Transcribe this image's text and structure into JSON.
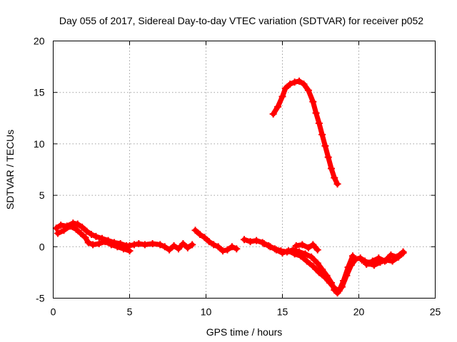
{
  "chart_data": {
    "type": "scatter",
    "title": "Day 055 of 2017, Sidereal Day-to-day VTEC variation (SDTVAR) for receiver p052",
    "xlabel": "GPS time / hours",
    "ylabel": "SDTVAR / TECUs",
    "xlim": [
      0,
      25
    ],
    "ylim": [
      -5,
      20
    ],
    "xticks": [
      0,
      5,
      10,
      15,
      20,
      25
    ],
    "yticks": [
      -5,
      0,
      5,
      10,
      15,
      20
    ],
    "xtick_labels": [
      "0",
      "5",
      "10",
      "15",
      "20",
      "25"
    ],
    "ytick_labels": [
      "-5",
      "0",
      "5",
      "10",
      "15",
      "20"
    ],
    "grid": true,
    "legend": "none",
    "marker": "plus",
    "color": "#ff0000",
    "series": [
      {
        "name": "track-1",
        "x": [
          0.2,
          0.5,
          0.9,
          1.3,
          1.6,
          1.9,
          2.2,
          2.5,
          2.8,
          3.2,
          3.6,
          4.0,
          4.4,
          4.8,
          5.0,
          5.3,
          5.6,
          6.0,
          6.5,
          7.0,
          7.3,
          7.6,
          7.9,
          8.2,
          8.5,
          8.8,
          9.1
        ],
        "y": [
          1.8,
          2.1,
          2.0,
          2.3,
          2.2,
          1.9,
          1.5,
          1.2,
          1.0,
          0.8,
          0.6,
          0.4,
          0.3,
          0.1,
          0.1,
          0.2,
          0.3,
          0.2,
          0.3,
          0.2,
          0.0,
          -0.3,
          0.1,
          -0.2,
          0.3,
          -0.1,
          0.2
        ]
      },
      {
        "name": "track-2",
        "x": [
          0.3,
          0.7,
          1.1,
          1.5,
          1.8,
          2.1,
          2.3,
          2.6,
          3.0,
          3.4,
          3.8,
          4.2,
          4.6,
          5.0
        ],
        "y": [
          1.3,
          1.6,
          2.0,
          1.7,
          1.3,
          0.9,
          0.4,
          0.2,
          0.3,
          0.5,
          0.2,
          0.0,
          -0.2,
          -0.4
        ]
      },
      {
        "name": "track-3",
        "x": [
          9.3,
          9.6,
          9.9,
          10.2,
          10.5,
          10.8,
          11.1,
          11.4,
          11.7,
          12.0
        ],
        "y": [
          1.6,
          1.2,
          0.9,
          0.5,
          0.2,
          0.0,
          -0.4,
          -0.3,
          0.0,
          -0.2
        ]
      },
      {
        "name": "track-4",
        "x": [
          12.5,
          12.9,
          13.3,
          13.7,
          14.1,
          14.5,
          14.9,
          15.3,
          15.7,
          16.1,
          16.5,
          16.9,
          17.3,
          17.6,
          17.9,
          18.2,
          18.4,
          18.6,
          18.9,
          19.2,
          19.5,
          19.8,
          20.1,
          20.4,
          20.7
        ],
        "y": [
          0.7,
          0.5,
          0.6,
          0.4,
          0.1,
          -0.2,
          -0.4,
          -0.5,
          -0.3,
          -0.5,
          -0.7,
          -1.0,
          -1.6,
          -2.2,
          -2.8,
          -3.5,
          -4.2,
          -4.5,
          -3.9,
          -2.8,
          -1.8,
          -1.2,
          -1.1,
          -1.4,
          -1.6
        ]
      },
      {
        "name": "track-5",
        "x": [
          13.8,
          14.2,
          14.6,
          15.0,
          15.4,
          15.8,
          16.2,
          16.6,
          17.0,
          17.4,
          17.8,
          18.1,
          18.4,
          18.7,
          19.0,
          19.3,
          19.6
        ],
        "y": [
          0.3,
          0.0,
          -0.3,
          -0.6,
          -0.4,
          -0.7,
          -0.9,
          -1.4,
          -1.9,
          -2.5,
          -3.0,
          -3.5,
          -4.0,
          -4.3,
          -3.3,
          -2.0,
          -0.9
        ]
      },
      {
        "name": "track-6",
        "x": [
          15.9,
          16.3,
          16.7,
          17.0,
          17.3
        ],
        "y": [
          0.1,
          0.2,
          -0.1,
          0.2,
          -0.3
        ]
      },
      {
        "name": "track-7",
        "x": [
          20.2,
          20.6,
          21.0,
          21.4,
          21.8,
          22.2,
          22.6,
          22.9
        ],
        "y": [
          -1.3,
          -1.6,
          -1.8,
          -1.5,
          -1.3,
          -1.4,
          -1.0,
          -0.6
        ]
      },
      {
        "name": "track-8",
        "x": [
          20.5,
          20.9,
          21.3,
          21.7,
          22.1,
          22.5,
          22.9
        ],
        "y": [
          -1.7,
          -1.4,
          -1.1,
          -1.4,
          -0.8,
          -1.0,
          -0.5
        ]
      },
      {
        "name": "track-9",
        "x": [
          14.4,
          14.7,
          15.0,
          15.2,
          15.5,
          15.8,
          16.1,
          16.4,
          16.7,
          17.0,
          17.2,
          17.4,
          17.6,
          17.8,
          18.0,
          18.2,
          18.4,
          18.6
        ],
        "y": [
          12.9,
          13.6,
          14.6,
          15.4,
          15.8,
          16.0,
          16.1,
          15.8,
          15.2,
          14.1,
          13.0,
          12.0,
          10.9,
          9.8,
          8.7,
          7.6,
          6.7,
          6.1
        ]
      }
    ]
  }
}
